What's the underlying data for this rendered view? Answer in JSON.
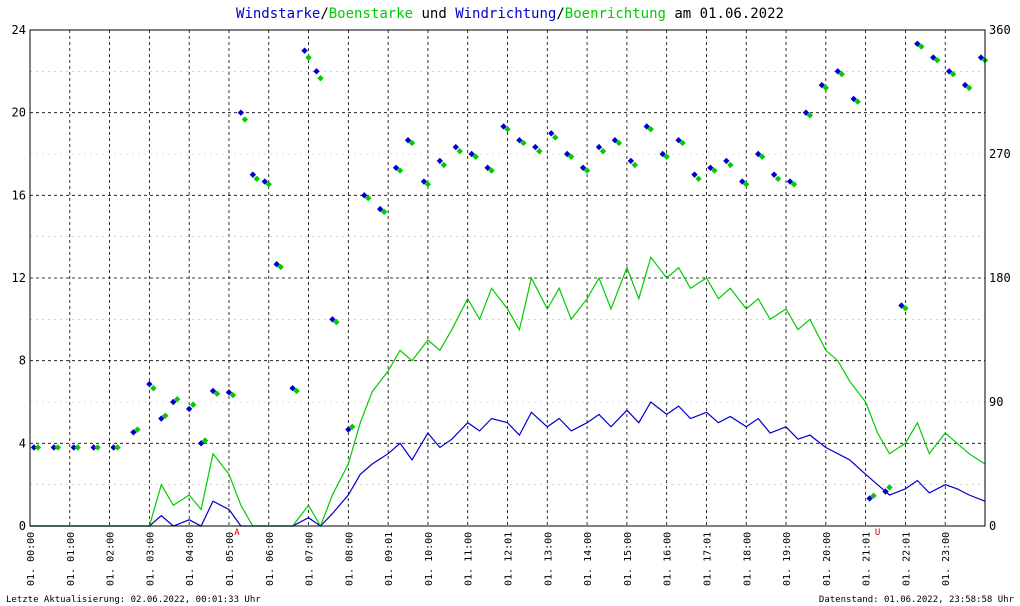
{
  "chart_data": {
    "type": "line",
    "title": {
      "parts": [
        {
          "text": "Windstarke",
          "color": "#0000cc"
        },
        {
          "text": "/",
          "color": "#000000"
        },
        {
          "text": "Boenstarke",
          "color": "#00cc00"
        },
        {
          "text": " und ",
          "color": "#000000"
        },
        {
          "text": "Windrichtung",
          "color": "#0000cc"
        },
        {
          "text": "/",
          "color": "#000000"
        },
        {
          "text": "Boenrichtung",
          "color": "#00cc00"
        },
        {
          "text": " am 01.06.2022",
          "color": "#000000"
        }
      ]
    },
    "left_axis": {
      "ylim": [
        0,
        24
      ],
      "ticks": [
        "0",
        "4",
        "8",
        "12",
        "16",
        "20",
        "24"
      ]
    },
    "right_axis": {
      "ylim": [
        0,
        360
      ],
      "ticks": [
        "0",
        "90",
        "180",
        "270",
        "360"
      ]
    },
    "x_axis": {
      "range_hours": [
        0,
        24
      ],
      "tick_labels": [
        "01. 00:00",
        "01. 01:00",
        "01. 02:00",
        "01. 03:00",
        "01. 04:00",
        "01. 05:00",
        "01. 06:00",
        "01. 07:00",
        "01. 08:00",
        "01. 09:01",
        "01. 10:00",
        "01. 11:00",
        "01. 12:01",
        "01. 13:00",
        "01. 14:00",
        "01. 15:00",
        "01. 16:00",
        "01. 17:01",
        "01. 18:00",
        "01. 19:00",
        "01. 20:00",
        "01. 21:01",
        "01. 22:01",
        "01. 23:00"
      ]
    },
    "grid": true,
    "markers": [
      {
        "label": "A",
        "hour": 5.2,
        "color": "#cc0000"
      },
      {
        "label": "U",
        "hour": 21.3,
        "color": "#cc0000"
      }
    ],
    "series": [
      {
        "name": "Windstarke",
        "axis": "left",
        "style": "line",
        "color": "#0000cc",
        "x": [
          0,
          0.5,
          1,
          1.5,
          2,
          2.3,
          3,
          3.3,
          3.6,
          4,
          4.3,
          4.6,
          5,
          5.3,
          5.6,
          6,
          6.3,
          6.6,
          7,
          7.3,
          7.6,
          8,
          8.3,
          8.6,
          9,
          9.3,
          9.6,
          10,
          10.3,
          10.6,
          11,
          11.3,
          11.6,
          12,
          12.3,
          12.6,
          13,
          13.3,
          13.6,
          14,
          14.3,
          14.6,
          15,
          15.3,
          15.6,
          16,
          16.3,
          16.6,
          17,
          17.3,
          17.6,
          18,
          18.3,
          18.6,
          19,
          19.3,
          19.6,
          20,
          20.3,
          20.6,
          21,
          21.3,
          21.6,
          22,
          22.3,
          22.6,
          23,
          23.3,
          23.6,
          24
        ],
        "y": [
          0,
          0,
          0,
          0,
          0,
          0,
          0,
          0.5,
          0,
          0.3,
          0,
          1.2,
          0.8,
          0,
          0,
          0,
          0,
          0,
          0.4,
          0,
          0.6,
          1.5,
          2.5,
          3,
          3.5,
          4,
          3.2,
          4.5,
          3.8,
          4.2,
          5,
          4.6,
          5.2,
          5,
          4.4,
          5.5,
          4.8,
          5.2,
          4.6,
          5,
          5.4,
          4.8,
          5.6,
          5,
          6,
          5.4,
          5.8,
          5.2,
          5.5,
          5,
          5.3,
          4.8,
          5.2,
          4.5,
          4.8,
          4.2,
          4.4,
          3.8,
          3.5,
          3.2,
          2.5,
          2,
          1.5,
          1.8,
          2.2,
          1.6,
          2,
          1.8,
          1.5,
          1.2
        ]
      },
      {
        "name": "Boenstarke",
        "axis": "left",
        "style": "line",
        "color": "#00cc00",
        "x": [
          0,
          0.5,
          1,
          1.5,
          2,
          2.3,
          3,
          3.3,
          3.6,
          4,
          4.3,
          4.6,
          5,
          5.3,
          5.6,
          6,
          6.3,
          6.6,
          7,
          7.3,
          7.6,
          8,
          8.3,
          8.6,
          9,
          9.3,
          9.6,
          10,
          10.3,
          10.6,
          11,
          11.3,
          11.6,
          12,
          12.3,
          12.6,
          13,
          13.3,
          13.6,
          14,
          14.3,
          14.6,
          15,
          15.3,
          15.6,
          16,
          16.3,
          16.6,
          17,
          17.3,
          17.6,
          18,
          18.3,
          18.6,
          19,
          19.3,
          19.6,
          20,
          20.3,
          20.6,
          21,
          21.3,
          21.6,
          22,
          22.3,
          22.6,
          23,
          23.3,
          23.6,
          24
        ],
        "y": [
          0,
          0,
          0,
          0,
          0,
          0,
          0,
          2,
          1,
          1.5,
          0.8,
          3.5,
          2.5,
          1,
          0,
          0,
          0,
          0,
          1,
          0,
          1.5,
          3,
          5,
          6.5,
          7.5,
          8.5,
          8,
          9,
          8.5,
          9.5,
          11,
          10,
          11.5,
          10.5,
          9.5,
          12,
          10.5,
          11.5,
          10,
          11,
          12,
          10.5,
          12.5,
          11,
          13,
          12,
          12.5,
          11.5,
          12,
          11,
          11.5,
          10.5,
          11,
          10,
          10.5,
          9.5,
          10,
          8.5,
          8,
          7,
          6,
          4.5,
          3.5,
          4,
          5,
          3.5,
          4.5,
          4,
          3.5,
          3
        ]
      },
      {
        "name": "Windrichtung",
        "axis": "right",
        "style": "points",
        "color": "#0000cc",
        "x": [
          0.1,
          0.6,
          1.1,
          1.6,
          2.1,
          2.6,
          3.0,
          3.3,
          3.6,
          4.0,
          4.3,
          4.6,
          5.0,
          5.3,
          5.6,
          5.9,
          6.2,
          6.6,
          6.9,
          7.2,
          7.6,
          8.0,
          8.4,
          8.8,
          9.2,
          9.5,
          9.9,
          10.3,
          10.7,
          11.1,
          11.5,
          11.9,
          12.3,
          12.7,
          13.1,
          13.5,
          13.9,
          14.3,
          14.7,
          15.1,
          15.5,
          15.9,
          16.3,
          16.7,
          17.1,
          17.5,
          17.9,
          18.3,
          18.7,
          19.1,
          19.5,
          19.9,
          20.3,
          20.7,
          21.1,
          21.5,
          21.9,
          22.3,
          22.7,
          23.1,
          23.5,
          23.9
        ],
        "y": [
          57,
          57,
          57,
          57,
          57,
          68,
          103,
          78,
          90,
          85,
          60,
          98,
          97,
          300,
          255,
          250,
          190,
          100,
          345,
          330,
          150,
          70,
          240,
          230,
          260,
          280,
          250,
          265,
          275,
          270,
          260,
          290,
          280,
          275,
          285,
          270,
          260,
          275,
          280,
          265,
          290,
          270,
          280,
          255,
          260,
          265,
          250,
          270,
          255,
          250,
          300,
          320,
          330,
          310,
          20,
          25,
          160,
          350,
          340,
          330,
          320,
          340
        ]
      },
      {
        "name": "Boenrichtung",
        "axis": "right",
        "style": "points",
        "color": "#00cc00",
        "x": [
          0.2,
          0.7,
          1.2,
          1.7,
          2.2,
          2.7,
          3.1,
          3.4,
          3.7,
          4.1,
          4.4,
          4.7,
          5.1,
          5.4,
          5.7,
          6.0,
          6.3,
          6.7,
          7.0,
          7.3,
          7.7,
          8.1,
          8.5,
          8.9,
          9.3,
          9.6,
          10.0,
          10.4,
          10.8,
          11.2,
          11.6,
          12.0,
          12.4,
          12.8,
          13.2,
          13.6,
          14.0,
          14.4,
          14.8,
          15.2,
          15.6,
          16.0,
          16.4,
          16.8,
          17.2,
          17.6,
          18.0,
          18.4,
          18.8,
          19.2,
          19.6,
          20.0,
          20.4,
          20.8,
          21.2,
          21.6,
          22.0,
          22.4,
          22.8,
          23.2,
          23.6,
          24.0
        ],
        "y": [
          57,
          57,
          57,
          57,
          57,
          70,
          100,
          80,
          92,
          88,
          62,
          96,
          95,
          295,
          252,
          248,
          188,
          98,
          340,
          325,
          148,
          72,
          238,
          228,
          258,
          278,
          248,
          262,
          272,
          268,
          258,
          288,
          278,
          272,
          282,
          268,
          258,
          272,
          278,
          262,
          288,
          268,
          278,
          252,
          258,
          262,
          248,
          268,
          252,
          248,
          298,
          318,
          328,
          308,
          22,
          28,
          158,
          348,
          338,
          328,
          318,
          338
        ]
      }
    ]
  },
  "footer": {
    "left": "Letzte Aktualisierung: 02.06.2022, 00:01:33 Uhr",
    "right": "Datenstand: 01.06.2022, 23:58:58 Uhr"
  }
}
